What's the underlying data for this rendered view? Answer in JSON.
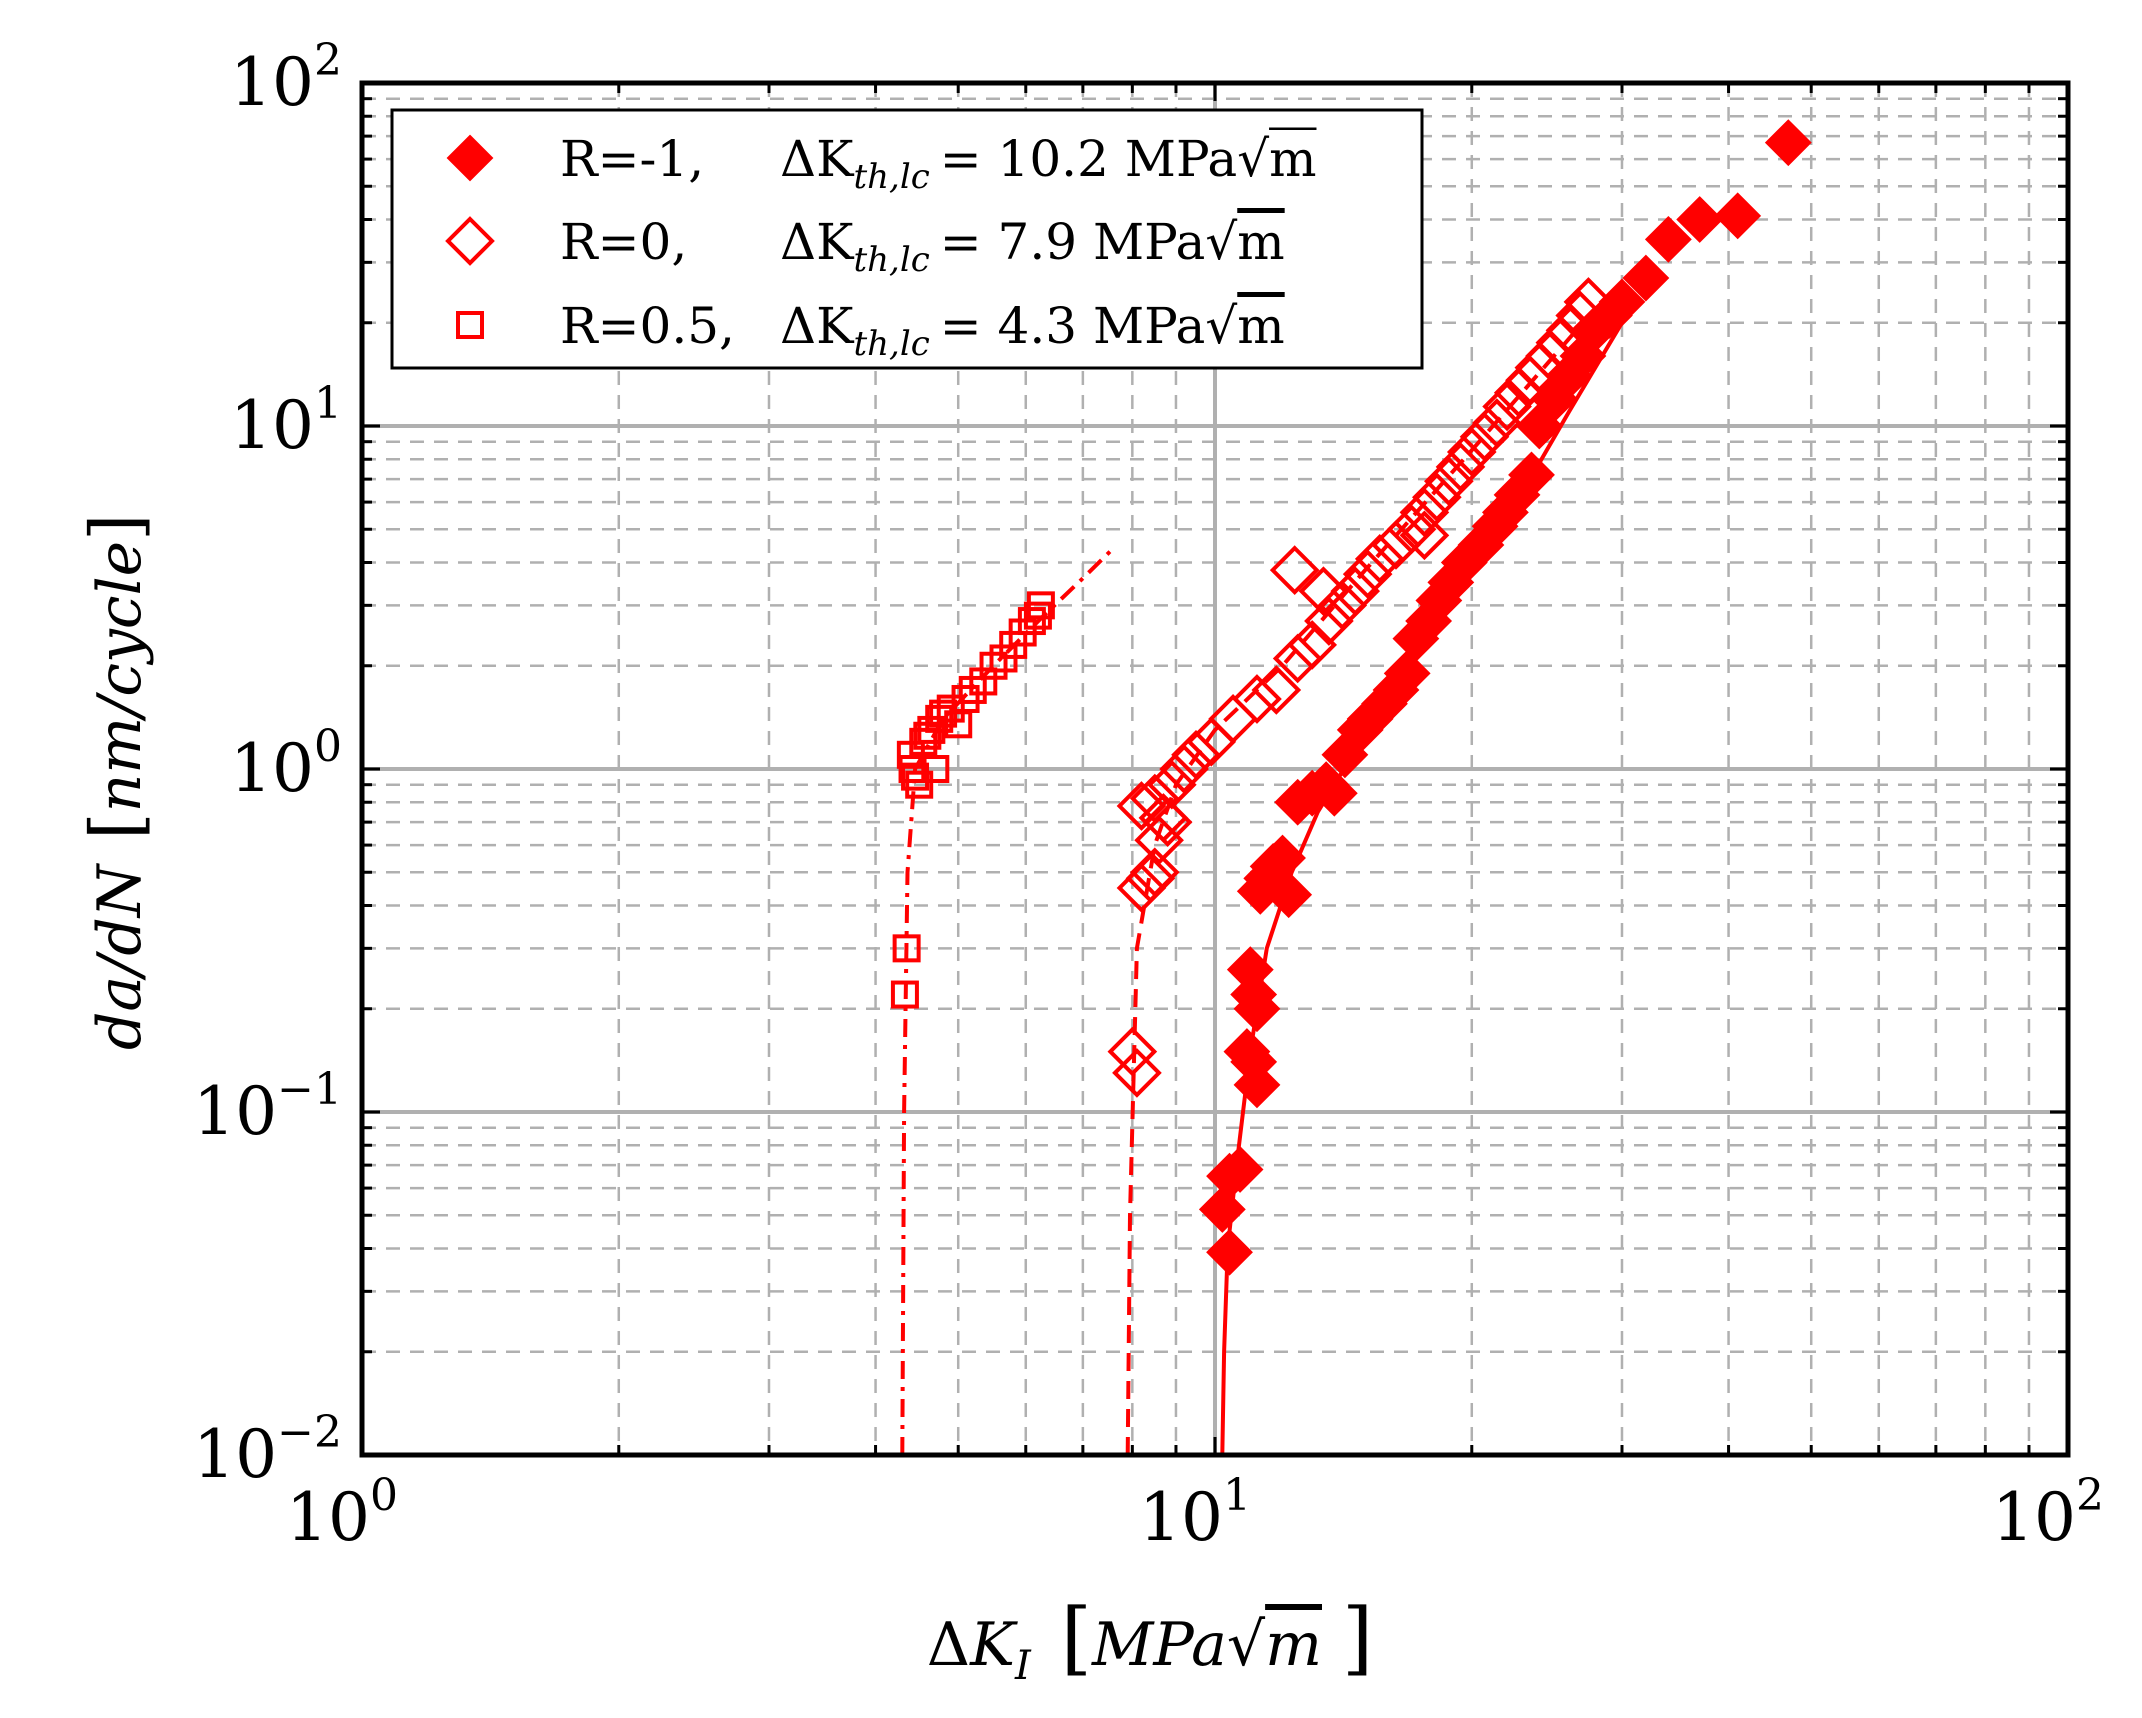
{
  "chart_data": {
    "type": "scatter",
    "x_scale": "log",
    "y_scale": "log",
    "xlim": [
      1,
      100
    ],
    "ylim": [
      0.01,
      100
    ],
    "x_ticks": [
      {
        "base": "10",
        "exp": "0",
        "value": 1
      },
      {
        "base": "10",
        "exp": "1",
        "value": 10
      },
      {
        "base": "10",
        "exp": "2",
        "value": 100
      }
    ],
    "y_ticks": [
      {
        "base": "10",
        "exp": "−2",
        "value": 0.01
      },
      {
        "base": "10",
        "exp": "−1",
        "value": 0.1
      },
      {
        "base": "10",
        "exp": "0",
        "value": 1
      },
      {
        "base": "10",
        "exp": "1",
        "value": 10
      },
      {
        "base": "10",
        "exp": "2",
        "value": 100
      }
    ],
    "xlabel": "ΔK_I [MPa√m]",
    "ylabel": "da/dN [nm/cycle]",
    "grid": true,
    "legend_position": "top-left",
    "colors": {
      "series": "#ff0000",
      "grid_major": "#b0b0b0",
      "grid_minor": "#b0b0b0",
      "axes": "#000000"
    },
    "series": [
      {
        "name": "R=-1,  ΔK_th,lc = 10.2 MPa√m",
        "legend": {
          "ratio": "R=-1,",
          "dk": "ΔK",
          "sub": "th,lc",
          "eq": "= 10.2 MPa",
          "unit": "m"
        },
        "marker": "diamond-filled",
        "line_style": "solid",
        "threshold": 10.2,
        "points": [
          [
            10.2,
            0.052
          ],
          [
            10.4,
            0.065
          ],
          [
            10.7,
            0.068
          ],
          [
            10.4,
            0.039
          ],
          [
            11.0,
            0.26
          ],
          [
            11.1,
            0.22
          ],
          [
            11.2,
            0.2
          ],
          [
            10.9,
            0.15
          ],
          [
            11.2,
            0.12
          ],
          [
            11.1,
            0.14
          ],
          [
            11.3,
            0.44
          ],
          [
            11.5,
            0.48
          ],
          [
            11.7,
            0.52
          ],
          [
            12.0,
            0.55
          ],
          [
            12.2,
            0.43
          ],
          [
            12.5,
            0.8
          ],
          [
            13.0,
            0.85
          ],
          [
            13.5,
            0.9
          ],
          [
            13.8,
            0.85
          ],
          [
            14.2,
            1.1
          ],
          [
            14.8,
            1.3
          ],
          [
            15.2,
            1.4
          ],
          [
            15.8,
            1.55
          ],
          [
            16.3,
            1.7
          ],
          [
            16.8,
            1.9
          ],
          [
            17.2,
            2.4
          ],
          [
            17.8,
            2.7
          ],
          [
            18.3,
            3.1
          ],
          [
            18.9,
            3.5
          ],
          [
            19.6,
            4.0
          ],
          [
            20.5,
            4.5
          ],
          [
            21.3,
            5.1
          ],
          [
            21.9,
            5.6
          ],
          [
            22.6,
            6.3
          ],
          [
            23.5,
            7.2
          ],
          [
            24.0,
            10.0
          ],
          [
            25.0,
            12.0
          ],
          [
            26.0,
            14.0
          ],
          [
            27.0,
            16.0
          ],
          [
            27.8,
            19.0
          ],
          [
            29.0,
            21.0
          ],
          [
            30.0,
            23.0
          ],
          [
            32.0,
            27.0
          ],
          [
            34.0,
            35.0
          ],
          [
            37.0,
            40.0
          ],
          [
            41.0,
            41.0
          ],
          [
            47.0,
            67.0
          ]
        ],
        "fit_curve": [
          [
            10.2,
            0.01
          ],
          [
            10.25,
            0.02
          ],
          [
            10.35,
            0.04
          ],
          [
            10.6,
            0.07
          ],
          [
            11.0,
            0.15
          ],
          [
            11.5,
            0.3
          ],
          [
            12.3,
            0.5
          ],
          [
            13.2,
            0.75
          ],
          [
            14.5,
            1.1
          ],
          [
            16.0,
            1.7
          ],
          [
            18.0,
            2.8
          ],
          [
            20.0,
            4.0
          ],
          [
            23.0,
            6.5
          ],
          [
            26.0,
            11.0
          ],
          [
            30.0,
            20.0
          ]
        ]
      },
      {
        "name": "R=0,   ΔK_th,lc =  7.9 MPa√m",
        "legend": {
          "ratio": "R=0,",
          "dk": "ΔK",
          "sub": "th,lc",
          "eq": "=  7.9 MPa",
          "unit": "m"
        },
        "marker": "diamond-open",
        "line_style": "dashed",
        "threshold": 7.9,
        "points": [
          [
            8.0,
            0.15
          ],
          [
            8.1,
            0.13
          ],
          [
            8.2,
            0.45
          ],
          [
            8.4,
            0.48
          ],
          [
            8.5,
            0.5
          ],
          [
            8.6,
            0.62
          ],
          [
            8.7,
            0.72
          ],
          [
            8.8,
            0.7
          ],
          [
            8.2,
            0.78
          ],
          [
            8.5,
            0.82
          ],
          [
            8.9,
            0.9
          ],
          [
            9.2,
            1.0
          ],
          [
            9.5,
            1.1
          ],
          [
            9.9,
            1.2
          ],
          [
            10.5,
            1.4
          ],
          [
            11.2,
            1.6
          ],
          [
            11.8,
            1.7
          ],
          [
            12.5,
            2.1
          ],
          [
            13.0,
            2.3
          ],
          [
            13.6,
            2.7
          ],
          [
            14.1,
            3.0
          ],
          [
            14.6,
            3.3
          ],
          [
            15.1,
            3.7
          ],
          [
            15.6,
            4.1
          ],
          [
            16.3,
            4.5
          ],
          [
            17.0,
            5.0
          ],
          [
            17.6,
            5.6
          ],
          [
            18.2,
            6.2
          ],
          [
            18.8,
            6.9
          ],
          [
            19.4,
            7.6
          ],
          [
            20.0,
            8.4
          ],
          [
            20.7,
            9.3
          ],
          [
            21.4,
            10.2
          ],
          [
            22.0,
            11.4
          ],
          [
            22.7,
            12.5
          ],
          [
            23.4,
            13.6
          ],
          [
            24.0,
            14.8
          ],
          [
            24.7,
            16.0
          ],
          [
            25.4,
            17.5
          ],
          [
            26.1,
            19.0
          ],
          [
            26.8,
            21.0
          ],
          [
            27.4,
            23.0
          ],
          [
            13.4,
            3.3
          ],
          [
            17.6,
            4.8
          ],
          [
            12.4,
            3.8
          ]
        ],
        "fit_curve": [
          [
            7.9,
            0.01
          ],
          [
            7.95,
            0.05
          ],
          [
            8.1,
            0.3
          ],
          [
            8.5,
            0.6
          ],
          [
            9.0,
            0.9
          ],
          [
            10.0,
            1.3
          ],
          [
            12.0,
            2.0
          ],
          [
            15.0,
            3.8
          ],
          [
            20.0,
            8.5
          ],
          [
            27.0,
            20.0
          ],
          [
            30.0,
            25.0
          ]
        ]
      },
      {
        "name": "R=0.5, ΔK_th,lc =  4.3 MPa√m",
        "legend": {
          "ratio": "R=0.5,",
          "dk": "ΔK",
          "sub": "th,lc",
          "eq": "=  4.3 MPa",
          "unit": "m"
        },
        "marker": "square-open",
        "line_style": "dashdot",
        "threshold": 4.3,
        "points": [
          [
            4.35,
            0.3
          ],
          [
            4.33,
            0.22
          ],
          [
            4.4,
            1.1
          ],
          [
            4.42,
            1.0
          ],
          [
            4.45,
            0.95
          ],
          [
            4.5,
            0.9
          ],
          [
            4.55,
            1.2
          ],
          [
            4.6,
            1.25
          ],
          [
            4.65,
            1.3
          ],
          [
            4.7,
            1.0
          ],
          [
            4.75,
            1.4
          ],
          [
            4.8,
            1.45
          ],
          [
            4.9,
            1.5
          ],
          [
            5.0,
            1.35
          ],
          [
            5.1,
            1.6
          ],
          [
            5.2,
            1.7
          ],
          [
            5.35,
            1.8
          ],
          [
            5.5,
            2.0
          ],
          [
            5.65,
            2.1
          ],
          [
            5.8,
            2.3
          ],
          [
            5.95,
            2.5
          ],
          [
            6.1,
            2.7
          ],
          [
            6.2,
            2.8
          ],
          [
            6.25,
            3.0
          ]
        ],
        "fit_curve": [
          [
            4.3,
            0.01
          ],
          [
            4.32,
            0.1
          ],
          [
            4.36,
            0.5
          ],
          [
            4.45,
            1.0
          ],
          [
            4.8,
            1.4
          ],
          [
            5.5,
            2.0
          ],
          [
            6.3,
            2.8
          ],
          [
            7.0,
            3.6
          ],
          [
            7.6,
            4.4
          ]
        ]
      }
    ]
  }
}
